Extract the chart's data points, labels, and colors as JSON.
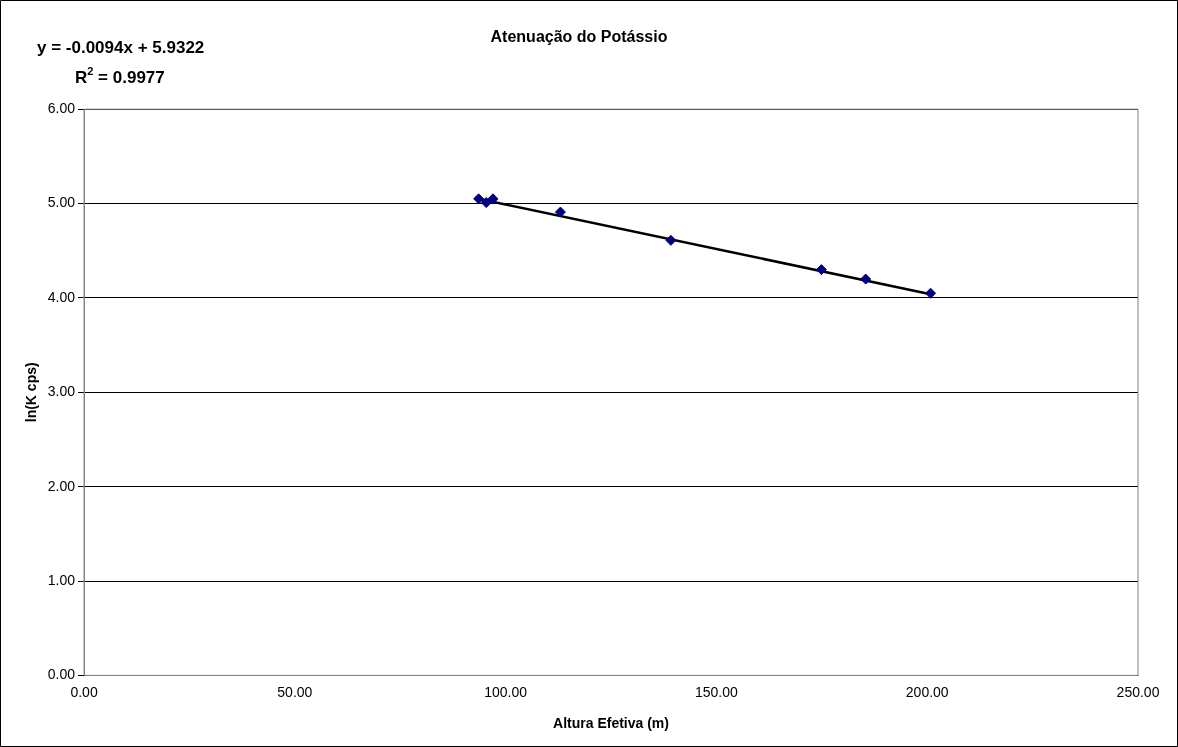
{
  "chart_data": {
    "type": "scatter",
    "title": "Atenuação do Potássio",
    "xlabel": "Altura Efetiva (m)",
    "ylabel": "ln(K cps)",
    "annotations": [
      "y = -0.0094x + 5.9322",
      "R$^{2}$ = 0.9977"
    ],
    "series": [
      {
        "color": "#000080",
        "marker": "diamond",
        "x": [
          93.6,
          95.4,
          97.0,
          113.0,
          139.2,
          174.9,
          185.4,
          200.8
        ],
        "values": [
          5.05,
          5.01,
          5.05,
          4.91,
          4.61,
          4.3,
          4.2,
          4.05
        ]
      },
      {
        "type": "line",
        "color": "#000000",
        "marker": "none",
        "x": [
          93.6,
          200.8
        ],
        "values": [
          5.05,
          4.04
        ]
      }
    ],
    "xlim": [
      0,
      250
    ],
    "xticks": [
      {
        "value": 0,
        "label": "0.00"
      },
      {
        "value": 50,
        "label": "50.00"
      },
      {
        "value": 100,
        "label": "100.00"
      },
      {
        "value": 150,
        "label": "150.00"
      },
      {
        "value": 200,
        "label": "200.00"
      },
      {
        "value": 250,
        "label": "250.00"
      }
    ],
    "ylim": [
      0,
      6
    ],
    "yticks": [
      {
        "value": 0,
        "label": "0.00"
      },
      {
        "value": 1,
        "label": "1.00"
      },
      {
        "value": 2,
        "label": "2.00"
      },
      {
        "value": 3,
        "label": "3.00"
      },
      {
        "value": 4,
        "label": "4.00"
      },
      {
        "value": 5,
        "label": "5.00"
      },
      {
        "value": 6,
        "label": "6.00"
      }
    ],
    "grid": "y",
    "legend": false
  }
}
